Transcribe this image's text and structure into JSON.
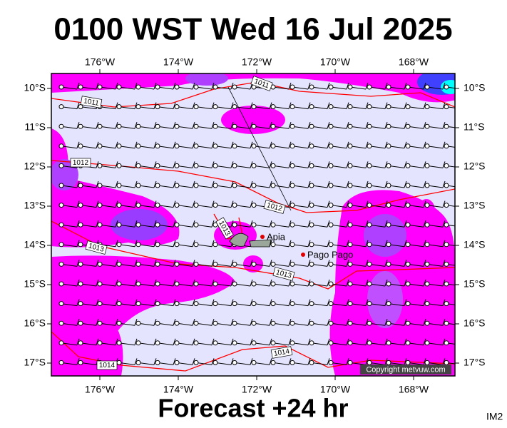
{
  "header": {
    "title": "0100 WST Wed 16 Jul 2025"
  },
  "map": {
    "lon_labels": [
      "176°W",
      "174°W",
      "172°W",
      "170°W",
      "168°W"
    ],
    "lat_labels": [
      "10°S",
      "11°S",
      "12°S",
      "13°S",
      "14°S",
      "15°S",
      "16°S",
      "17°S"
    ],
    "places": [
      "Apia",
      "Pago Pago"
    ],
    "isobar_labels": [
      "1011",
      "1011",
      "1012",
      "1012",
      "1013",
      "1013",
      "1013",
      "1014",
      "1014"
    ],
    "copyright": "Copyright metvuw.com"
  },
  "footer": {
    "caption": "Forecast +24 hr",
    "code": "IM2"
  }
}
